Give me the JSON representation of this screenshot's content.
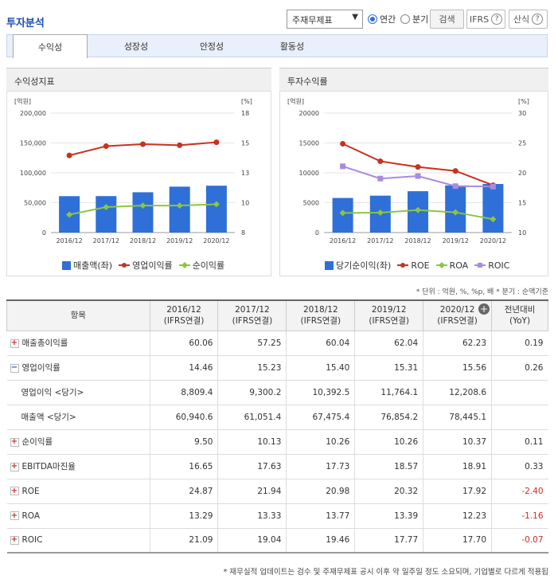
{
  "header": {
    "title": "투자분석",
    "select_value": "주재무제표",
    "radio_annual": "연간",
    "radio_quarter": "분기",
    "search_label": "검색",
    "ifrs_label": "IFRS",
    "formula_label": "산식"
  },
  "tabs": [
    {
      "label": "수익성",
      "active": true
    },
    {
      "label": "성장성",
      "active": false
    },
    {
      "label": "안정성",
      "active": false
    },
    {
      "label": "활동성",
      "active": false
    }
  ],
  "left_panel": {
    "title": "수익성지표"
  },
  "right_panel": {
    "title": "투자수익률"
  },
  "colors": {
    "bar": "#2f6fd8",
    "red": "#c8321e",
    "green": "#8cc63f",
    "purple": "#a98be0"
  },
  "chart_data": [
    {
      "type": "bar",
      "categories": [
        "2016/12",
        "2017/12",
        "2018/12",
        "2019/12",
        "2020/12"
      ],
      "y_left_unit": "[억원]",
      "y_right_unit": "[%]",
      "y_left_ticks": [
        "200,000",
        "150,000",
        "100,000",
        "50,000",
        "0"
      ],
      "y_right_ticks": [
        "18",
        "15",
        "13",
        "10",
        "8"
      ],
      "ylim_left": [
        0,
        200000
      ],
      "ylim_right": [
        8,
        18
      ],
      "series": [
        {
          "name": "매출액(좌)",
          "axis": "left",
          "kind": "bar",
          "values": [
            60940.6,
            61051.4,
            67475.4,
            76854.2,
            78445.1
          ]
        },
        {
          "name": "영업이익률",
          "axis": "right",
          "kind": "line",
          "values": [
            14.46,
            15.23,
            15.4,
            15.31,
            15.56
          ]
        },
        {
          "name": "순이익률",
          "axis": "right",
          "kind": "line",
          "values": [
            9.5,
            10.13,
            10.26,
            10.26,
            10.37
          ]
        }
      ]
    },
    {
      "type": "bar",
      "categories": [
        "2016/12",
        "2017/12",
        "2018/12",
        "2019/12",
        "2020/12"
      ],
      "y_left_unit": "[억원]",
      "y_right_unit": "[%]",
      "y_left_ticks": [
        "20000",
        "15000",
        "10000",
        "5000",
        "0"
      ],
      "y_right_ticks": [
        "30",
        "25",
        "20",
        "15",
        "10"
      ],
      "ylim_left": [
        0,
        20000
      ],
      "ylim_right": [
        10,
        30
      ],
      "series": [
        {
          "name": "당기순이익(좌)",
          "axis": "left",
          "kind": "bar",
          "values": [
            5790,
            6180,
            6920,
            7890,
            8130
          ]
        },
        {
          "name": "ROE",
          "axis": "right",
          "kind": "line",
          "values": [
            24.87,
            21.94,
            20.98,
            20.32,
            17.92
          ]
        },
        {
          "name": "ROA",
          "axis": "right",
          "kind": "line",
          "values": [
            13.29,
            13.33,
            13.77,
            13.39,
            12.23
          ]
        },
        {
          "name": "ROIC",
          "axis": "right",
          "kind": "line",
          "values": [
            21.09,
            19.04,
            19.46,
            17.77,
            17.7
          ]
        }
      ]
    }
  ],
  "unit_note": "* 단위 : 억원, %, %p, 배   * 분기 : 순액기준",
  "table": {
    "headers": [
      {
        "l1": "항목",
        "l2": ""
      },
      {
        "l1": "2016/12",
        "l2": "(IFRS연결)"
      },
      {
        "l1": "2017/12",
        "l2": "(IFRS연결)"
      },
      {
        "l1": "2018/12",
        "l2": "(IFRS연결)"
      },
      {
        "l1": "2019/12",
        "l2": "(IFRS연결)"
      },
      {
        "l1": "2020/12",
        "l2": "(IFRS연결)"
      },
      {
        "l1": "전년대비",
        "l2": "(YoY)"
      }
    ],
    "rows": [
      {
        "label": "매출총이익률",
        "toggle": "+",
        "values": [
          "60.06",
          "57.25",
          "60.04",
          "62.04",
          "62.23",
          "0.19"
        ]
      },
      {
        "label": "영업이익률",
        "toggle": "-",
        "values": [
          "14.46",
          "15.23",
          "15.40",
          "15.31",
          "15.56",
          "0.26"
        ]
      },
      {
        "label": "영업이익 <당기>",
        "toggle": "",
        "values": [
          "8,809.4",
          "9,300.2",
          "10,392.5",
          "11,764.1",
          "12,208.6",
          ""
        ]
      },
      {
        "label": "매출액 <당기>",
        "toggle": "",
        "values": [
          "60,940.6",
          "61,051.4",
          "67,475.4",
          "76,854.2",
          "78,445.1",
          ""
        ]
      },
      {
        "label": "순이익률",
        "toggle": "+",
        "values": [
          "9.50",
          "10.13",
          "10.26",
          "10.26",
          "10.37",
          "0.11"
        ]
      },
      {
        "label": "EBITDA마진율",
        "toggle": "+",
        "values": [
          "16.65",
          "17.63",
          "17.73",
          "18.57",
          "18.91",
          "0.33"
        ]
      },
      {
        "label": "ROE",
        "toggle": "+",
        "values": [
          "24.87",
          "21.94",
          "20.98",
          "20.32",
          "17.92",
          "-2.40"
        ]
      },
      {
        "label": "ROA",
        "toggle": "+",
        "values": [
          "13.29",
          "13.33",
          "13.77",
          "13.39",
          "12.23",
          "-1.16"
        ]
      },
      {
        "label": "ROIC",
        "toggle": "+",
        "values": [
          "21.09",
          "19.04",
          "19.46",
          "17.77",
          "17.70",
          "-0.07"
        ]
      }
    ]
  },
  "footer_note": "* 재무실적 업데이트는 검수 및 주재무제표 공시 이후 약 일주일 정도 소요되며, 기업별로 다르게 적용됩"
}
